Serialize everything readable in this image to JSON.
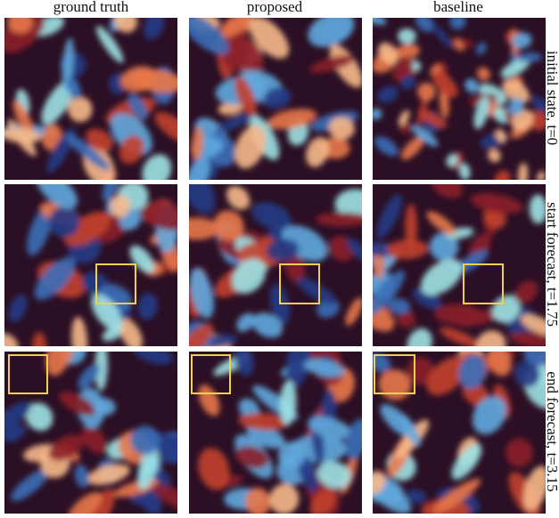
{
  "columns": [
    "ground truth",
    "proposed",
    "baseline"
  ],
  "rows": [
    "initial state, t=0",
    "start forecast, t=1.75",
    "end forecast, t=3.15"
  ]
}
